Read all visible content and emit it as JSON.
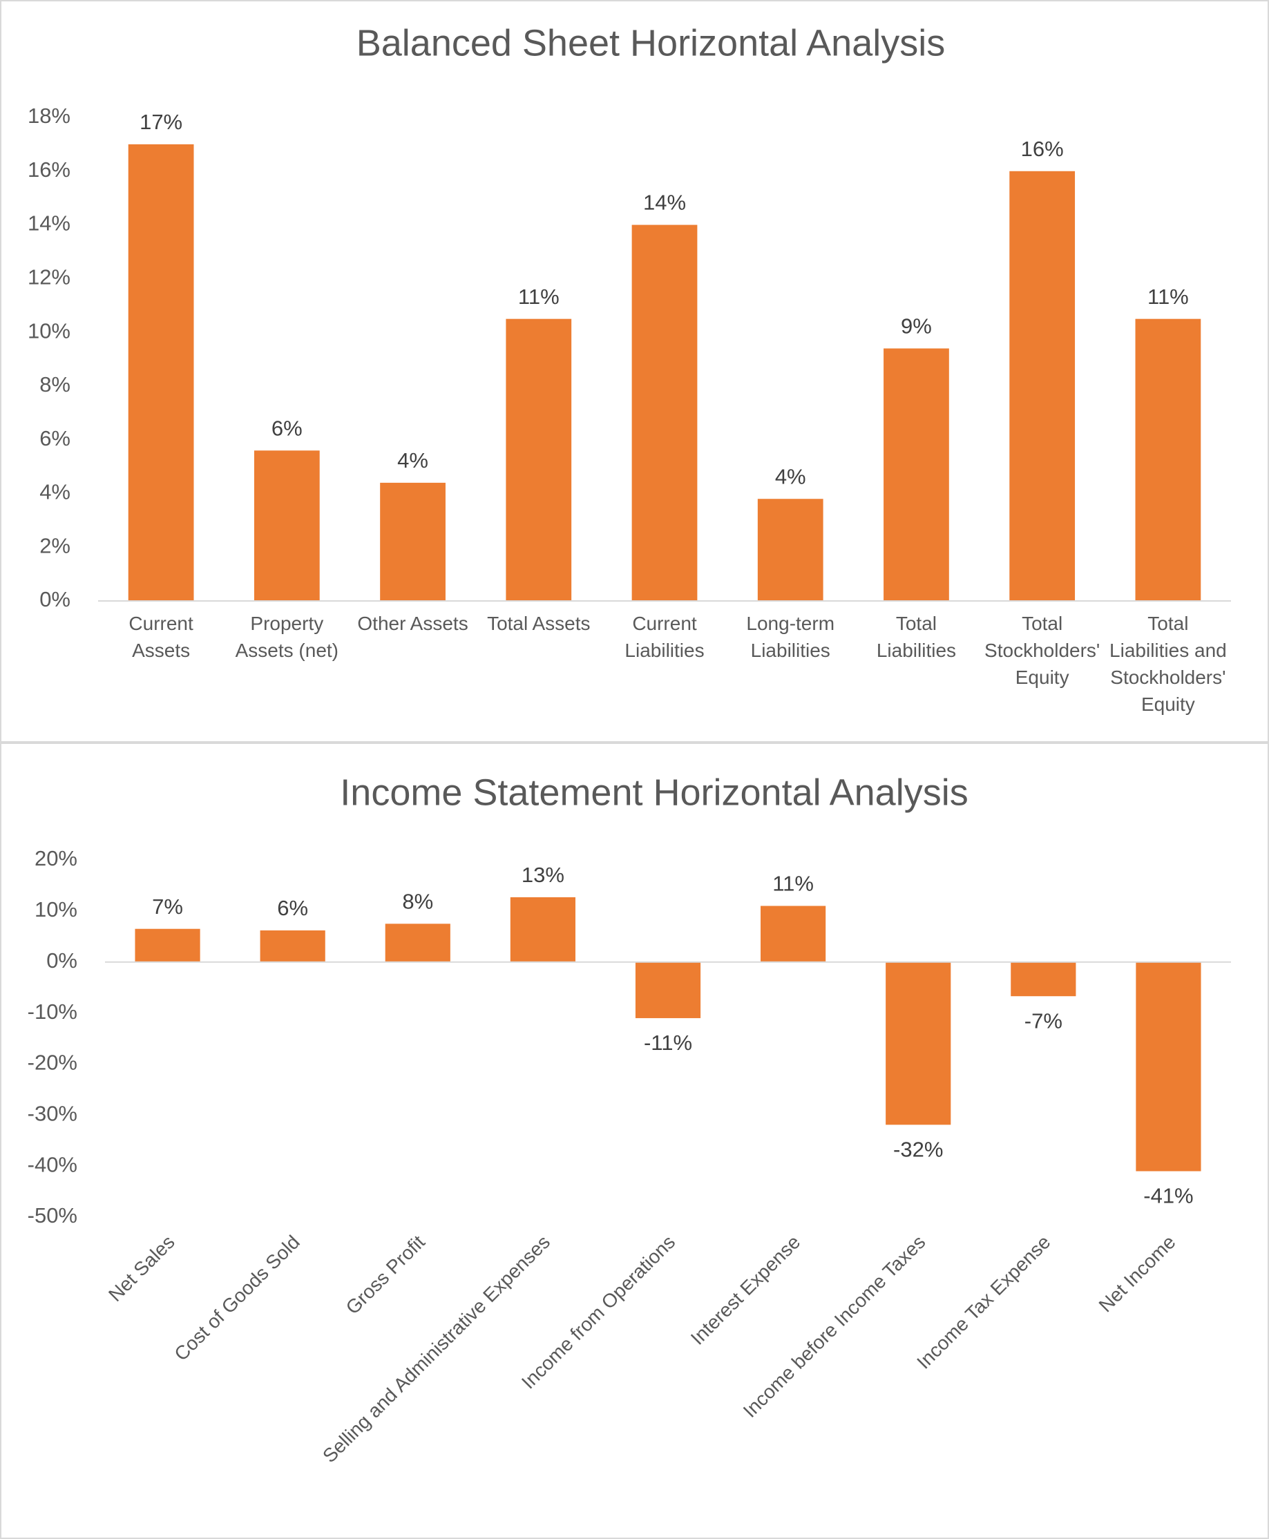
{
  "chart_data": [
    {
      "type": "bar",
      "title": "Balanced Sheet Horizontal Analysis",
      "categories": [
        "Current Assets",
        "Property Assets (net)",
        "Other Assets",
        "Total Assets",
        "Current Liabilities",
        "Long-term Liabilities",
        "Total Liabilities",
        "Total Stockholders' Equity",
        "Total Liabilities and Stockholders' Equity"
      ],
      "values": [
        17,
        5.6,
        4.4,
        10.5,
        14,
        3.8,
        9.4,
        16,
        10.5
      ],
      "value_labels": [
        "17%",
        "6%",
        "4%",
        "11%",
        "14%",
        "4%",
        "9%",
        "16%",
        "11%"
      ],
      "color": "#ed7d31",
      "ylim": [
        0,
        18
      ],
      "yticks": [
        {
          "value": 0,
          "label": "0%"
        },
        {
          "value": 2,
          "label": "2%"
        },
        {
          "value": 4,
          "label": "4%"
        },
        {
          "value": 6,
          "label": "6%"
        },
        {
          "value": 8,
          "label": "8%"
        },
        {
          "value": 10,
          "label": "10%"
        },
        {
          "value": 12,
          "label": "12%"
        },
        {
          "value": 14,
          "label": "14%"
        },
        {
          "value": 16,
          "label": "16%"
        },
        {
          "value": 18,
          "label": "18%"
        }
      ],
      "grid": false
    },
    {
      "type": "bar",
      "title": "Income Statement Horizontal Analysis",
      "categories": [
        "Net Sales",
        "Cost of Goods Sold",
        "Gross Profit",
        "Selling and Administrative Expenses",
        "Income from Operations",
        "Interest Expense",
        "Income before Income Taxes",
        "Income Tax Expense",
        "Net Income"
      ],
      "values": [
        6.5,
        6.2,
        7.5,
        12.7,
        -11,
        11,
        -31.9,
        -6.7,
        -41
      ],
      "value_labels": [
        "7%",
        "6%",
        "8%",
        "13%",
        "-11%",
        "11%",
        "-32%",
        "-7%",
        "-41%"
      ],
      "color": "#ed7d31",
      "ylim": [
        -50,
        20
      ],
      "yticks": [
        {
          "value": -50,
          "label": "-50%"
        },
        {
          "value": -40,
          "label": "-40%"
        },
        {
          "value": -30,
          "label": "-30%"
        },
        {
          "value": -20,
          "label": "-20%"
        },
        {
          "value": -10,
          "label": "-10%"
        },
        {
          "value": 0,
          "label": "0%"
        },
        {
          "value": 10,
          "label": "10%"
        },
        {
          "value": 20,
          "label": "20%"
        }
      ],
      "grid": false
    }
  ]
}
